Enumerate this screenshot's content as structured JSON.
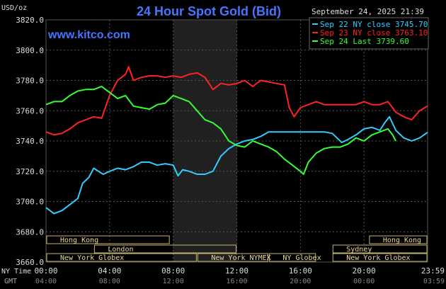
{
  "header": {
    "title": "24 Hour Spot Gold (Bid)",
    "website": "www.kitco.com",
    "unit_label": "USD/oz",
    "timestamp": "September 24, 2025 21:39"
  },
  "legend": [
    {
      "text": "Sep 22 NY close 3745.70",
      "color": "#33ccff"
    },
    {
      "text": "Sep 23 NY close 3763.10",
      "color": "#ff2222"
    },
    {
      "text": "Sep 24 Last 3739.60",
      "color": "#33ff33"
    }
  ],
  "axis_left_labels": {
    "ny_time": "NY Time",
    "gmt": "GMT"
  },
  "x_ticks": [
    {
      "label": "00:00",
      "gmt": "04:00"
    },
    {
      "label": "04:00",
      "gmt": "08:00"
    },
    {
      "label": "08:00",
      "gmt": "12:00"
    },
    {
      "label": "12:00",
      "gmt": "16:00"
    },
    {
      "label": "16:00",
      "gmt": "20:00"
    },
    {
      "label": "20:00",
      "gmt": "00:00"
    },
    {
      "label": "23:59",
      "gmt": "03:59"
    }
  ],
  "y_ticks": [
    "3820.0",
    "3800.0",
    "3780.0",
    "3760.0",
    "3740.0",
    "3720.0",
    "3700.0",
    "3680.0",
    "3660.0"
  ],
  "sessions": [
    {
      "label": "Hong Kong",
      "start": 0.0,
      "end": 7.8,
      "row": 0
    },
    {
      "label": "London",
      "start": 3.0,
      "end": 12.0,
      "row": 1
    },
    {
      "label": "New York Globex",
      "start": 0.0,
      "end": 9.5,
      "row": 2
    },
    {
      "label": "New York NYMEX",
      "start": 9.5,
      "end": 14.0,
      "row": 2
    },
    {
      "label": "NY Globex",
      "start": 14.0,
      "end": 17.0,
      "row": 2
    },
    {
      "label": "Hong Kong",
      "start": 20.3,
      "end": 24.0,
      "row": 0
    },
    {
      "label": "Sydney",
      "start": 18.0,
      "end": 24.0,
      "row": 1
    },
    {
      "label": "New York Globex",
      "start": 18.0,
      "end": 24.0,
      "row": 2
    }
  ],
  "chart_data": {
    "type": "line",
    "title": "24 Hour Spot Gold (Bid)",
    "xlabel": "NY Time",
    "ylabel": "USD/oz",
    "xlim": [
      0,
      24
    ],
    "ylim": [
      3660,
      3820
    ],
    "grid": true,
    "legend_position": "top-right",
    "shaded_region": [
      8.0,
      12.0
    ],
    "series": [
      {
        "name": "Sep 22 NY close 3745.70",
        "color": "#33ccff",
        "x": [
          0,
          0.5,
          1,
          1.5,
          2,
          2.3,
          2.7,
          3,
          3.3,
          3.6,
          4,
          4.5,
          5,
          5.5,
          6,
          6.5,
          7,
          7.5,
          8,
          8.3,
          8.6,
          9,
          9.5,
          10,
          10.5,
          11,
          11.5,
          12,
          12.5,
          13,
          13.5,
          14,
          14.5,
          15,
          15.5,
          16,
          16.5,
          17,
          17.5,
          18,
          18.3,
          18.6,
          19,
          19.5,
          20,
          20.5,
          21,
          21.3,
          21.6,
          22,
          22.5,
          23,
          23.5,
          24
        ],
        "y": [
          3696,
          3692,
          3694,
          3698,
          3702,
          3712,
          3716,
          3722,
          3720,
          3718,
          3720,
          3722,
          3721,
          3723,
          3726,
          3726,
          3724,
          3725,
          3724,
          3717,
          3721,
          3720,
          3718,
          3718,
          3720,
          3730,
          3735,
          3738,
          3740,
          3741,
          3743,
          3746,
          3746,
          3746,
          3746,
          3746,
          3746,
          3746,
          3746,
          3745,
          3742,
          3739,
          3741,
          3744,
          3748,
          3749,
          3747,
          3752,
          3756,
          3747,
          3742,
          3740,
          3742,
          3745.7
        ]
      },
      {
        "name": "Sep 23 NY close 3763.10",
        "color": "#ff2222",
        "x": [
          0,
          0.5,
          1,
          1.5,
          2,
          2.5,
          3,
          3.5,
          4,
          4.5,
          5,
          5.2,
          5.5,
          6,
          6.5,
          7,
          7.5,
          8,
          8.5,
          9,
          9.5,
          10,
          10.5,
          11,
          11.5,
          12,
          12.5,
          13,
          13.5,
          14,
          14.5,
          15,
          15.3,
          15.6,
          16,
          16.5,
          17,
          17.5,
          18,
          18.5,
          19,
          19.5,
          20,
          20.5,
          21,
          21.5,
          22,
          22.5,
          23,
          23.5,
          24
        ],
        "y": [
          3746,
          3744,
          3745,
          3748,
          3752,
          3754,
          3756,
          3755,
          3770,
          3780,
          3784,
          3789,
          3780,
          3782,
          3783,
          3783,
          3782,
          3783,
          3782,
          3784,
          3785,
          3782,
          3774,
          3778,
          3777,
          3778,
          3780,
          3776,
          3780,
          3779,
          3778,
          3777,
          3762,
          3756,
          3762,
          3764,
          3766,
          3764,
          3764,
          3764,
          3764,
          3764,
          3766,
          3764,
          3764,
          3766,
          3759,
          3756,
          3754,
          3760,
          3763.1
        ]
      },
      {
        "name": "Sep 24 Last 3739.60",
        "color": "#33ff33",
        "x": [
          0,
          0.5,
          1,
          1.5,
          2,
          2.5,
          3,
          3.5,
          4,
          4.5,
          5,
          5.5,
          6,
          6.5,
          7,
          7.5,
          8,
          8.5,
          9,
          9.5,
          10,
          10.5,
          11,
          11.5,
          12,
          12.5,
          13,
          13.5,
          14,
          14.5,
          15,
          15.5,
          16,
          16.2,
          16.5,
          17,
          17.5,
          18,
          18.5,
          19,
          19.5,
          20,
          20.5,
          21,
          21.5,
          21.8,
          22
        ],
        "y": [
          3764,
          3766,
          3766,
          3770,
          3773,
          3774,
          3774,
          3776,
          3772,
          3768,
          3770,
          3763,
          3762,
          3761,
          3764,
          3765,
          3770,
          3768,
          3766,
          3760,
          3754,
          3752,
          3748,
          3740,
          3737,
          3736,
          3740,
          3738,
          3736,
          3733,
          3728,
          3724,
          3720,
          3718,
          3726,
          3732,
          3735,
          3736,
          3736,
          3738,
          3742,
          3740,
          3744,
          3746,
          3748,
          3744,
          3740
        ]
      }
    ]
  }
}
